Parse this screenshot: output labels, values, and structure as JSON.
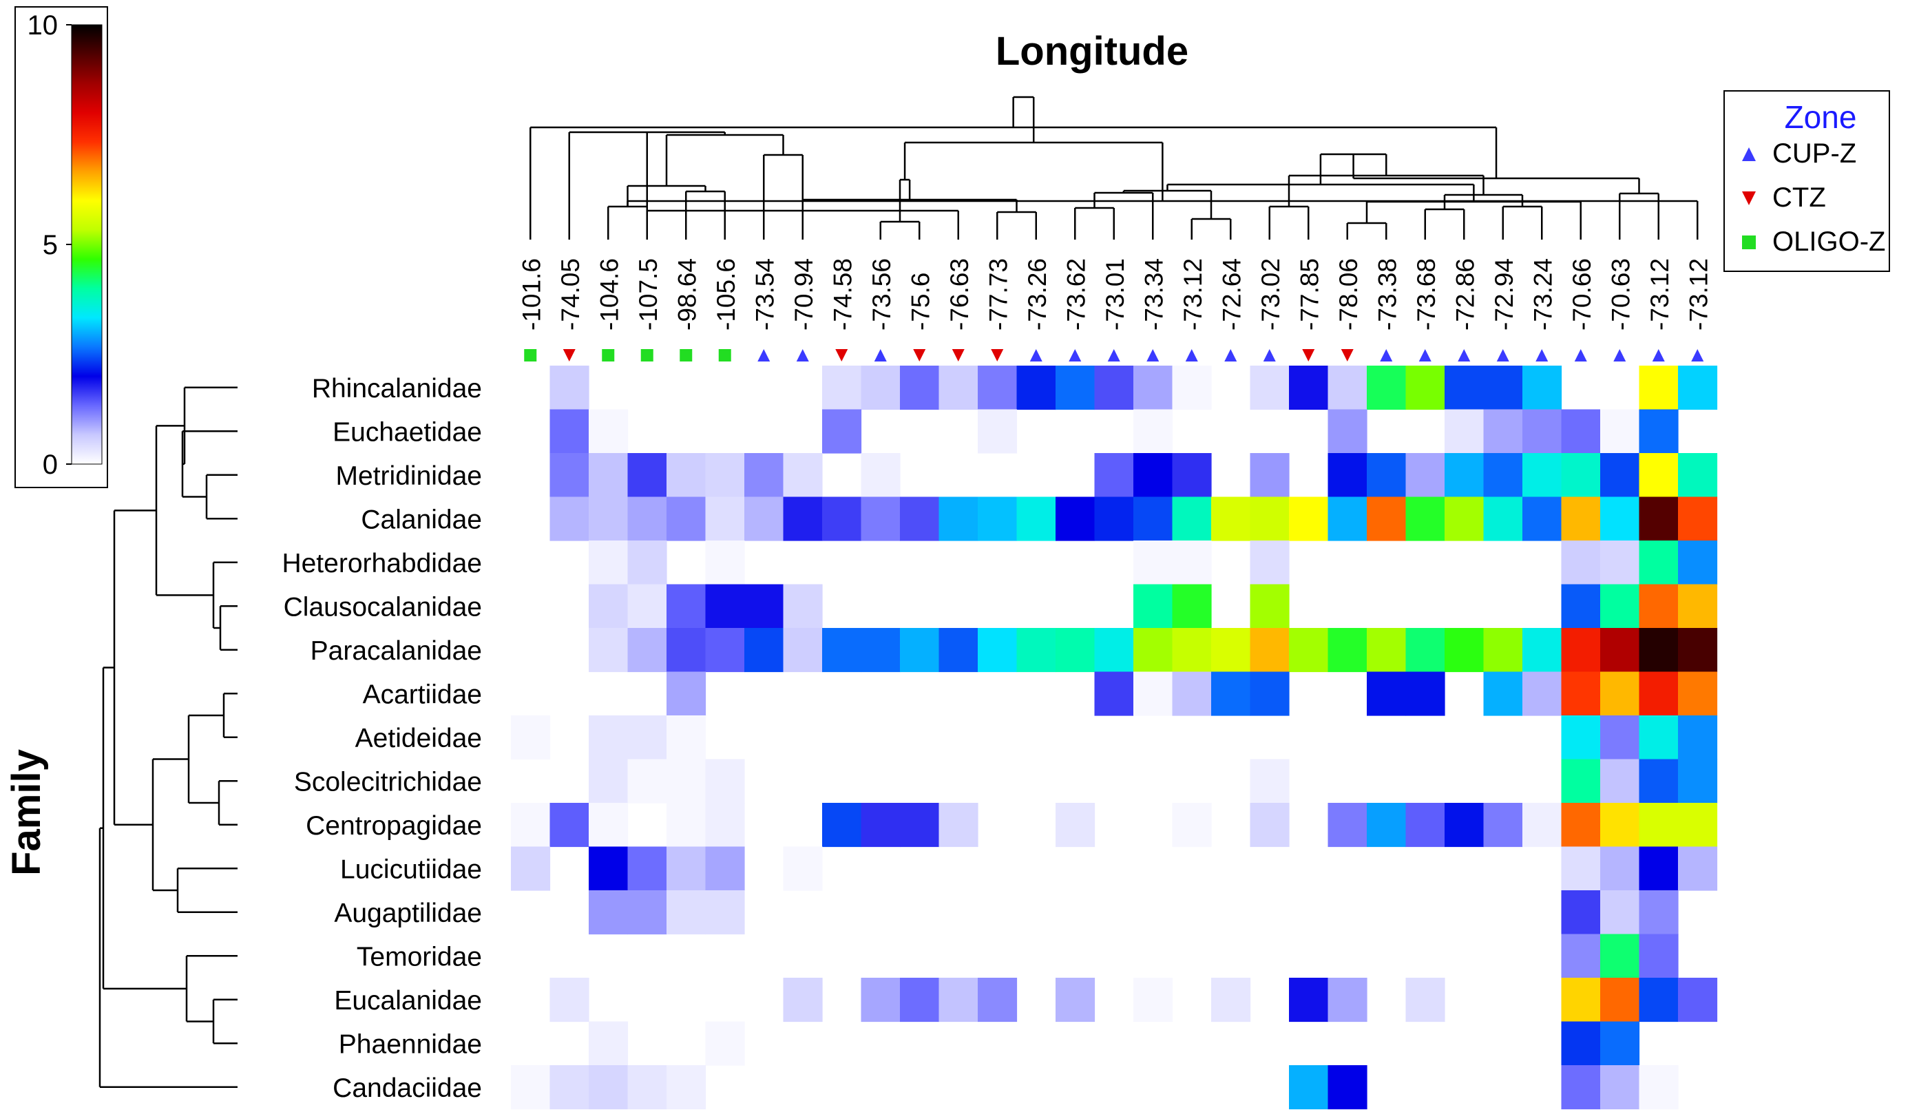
{
  "chart_data": {
    "type": "heatmap",
    "title": "Longitude",
    "xlabel": "",
    "ylabel": "Family",
    "colorbar": {
      "min": 0,
      "max": 10,
      "ticks": [
        "0",
        "5",
        "10"
      ],
      "stops": [
        "#ffffff",
        "#c8c8ff",
        "#6868ff",
        "#0000e8",
        "#0a78ff",
        "#00e8ff",
        "#00ffa0",
        "#30ff00",
        "#c0ff00",
        "#ffff00",
        "#ffa000",
        "#ff3000",
        "#e00000",
        "#a00000",
        "#500000",
        "#000000"
      ]
    },
    "columns": [
      "-101.6",
      "-74.05",
      "-104.6",
      "-107.5",
      "-98.64",
      "-105.6",
      "-73.54",
      "-70.94",
      "-74.58",
      "-73.56",
      "-75.6",
      "-76.63",
      "-77.73",
      "-73.26",
      "-73.62",
      "-73.01",
      "-73.34",
      "-73.12",
      "-72.64",
      "-73.02",
      "-77.85",
      "-78.06",
      "-73.38",
      "-73.68",
      "-72.86",
      "-72.94",
      "-73.24",
      "-70.66",
      "-70.63",
      "-73.12",
      "-73.12"
    ],
    "column_zones": [
      "OLIGO-Z",
      "CTZ",
      "OLIGO-Z",
      "OLIGO-Z",
      "OLIGO-Z",
      "OLIGO-Z",
      "CUP-Z",
      "CUP-Z",
      "CTZ",
      "CUP-Z",
      "CTZ",
      "CTZ",
      "CTZ",
      "CUP-Z",
      "CUP-Z",
      "CUP-Z",
      "CUP-Z",
      "CUP-Z",
      "CUP-Z",
      "CUP-Z",
      "CTZ",
      "CTZ",
      "CUP-Z",
      "CUP-Z",
      "CUP-Z",
      "CUP-Z",
      "CUP-Z",
      "CUP-Z",
      "CUP-Z",
      "CUP-Z",
      "CUP-Z"
    ],
    "rows": [
      "Rhincalanidae",
      "Euchaetidae",
      "Metridinidae",
      "Calanidae",
      "Heterorhabdidae",
      "Clausocalanidae",
      "Paracalanidae",
      "Acartiidae",
      "Aetideidae",
      "Scolecitrichidae",
      "Centropagidae",
      "Lucicutiidae",
      "Augaptilidae",
      "Temoridae",
      "Eucalanidae",
      "Phaennidae",
      "Candaciidae"
    ],
    "values": [
      [
        0,
        0.6,
        0,
        0,
        0,
        0,
        0,
        0,
        0.4,
        0.6,
        1.3,
        0.6,
        1.2,
        2.2,
        2.6,
        1.5,
        0.9,
        0.1,
        0,
        0.4,
        1.9,
        0.6,
        4.3,
        5.0,
        2.4,
        2.4,
        3.1,
        0,
        0,
        6.0,
        3.2
      ],
      [
        0,
        1.3,
        0.1,
        0,
        0,
        0,
        0,
        0,
        1.2,
        0,
        0,
        0,
        0.2,
        0,
        0,
        0,
        0.1,
        0,
        0,
        0,
        0,
        1.0,
        0,
        0,
        0.3,
        0.9,
        1.1,
        1.3,
        0.1,
        2.6,
        0
      ],
      [
        0,
        1.2,
        0.7,
        1.6,
        0.6,
        0.5,
        1.1,
        0.4,
        0,
        0.2,
        0,
        0,
        0,
        0,
        0,
        1.4,
        2.0,
        1.7,
        0,
        1.0,
        0,
        2.1,
        2.5,
        0.9,
        3.0,
        2.6,
        3.5,
        3.7,
        2.4,
        6.0,
        3.8
      ],
      [
        0,
        0.8,
        0.7,
        0.9,
        1.1,
        0.4,
        0.8,
        1.8,
        1.6,
        1.2,
        1.5,
        3.0,
        3.1,
        3.5,
        2.0,
        2.2,
        2.4,
        3.8,
        5.6,
        5.5,
        6.0,
        3.0,
        7.0,
        4.5,
        5.2,
        3.6,
        2.6,
        6.5,
        3.3,
        9.3,
        7.2
      ],
      [
        0,
        0,
        0.2,
        0.5,
        0,
        0.1,
        0,
        0,
        0,
        0,
        0,
        0,
        0,
        0,
        0,
        0,
        0.1,
        0.1,
        0,
        0.4,
        0,
        0,
        0,
        0,
        0,
        0,
        0,
        0.6,
        0.5,
        4.0,
        2.8
      ],
      [
        0,
        0,
        0.5,
        0.3,
        1.4,
        1.9,
        1.9,
        0.5,
        0,
        0,
        0,
        0,
        0,
        0,
        0,
        0,
        4.0,
        4.5,
        0,
        5.2,
        0,
        0,
        0,
        0,
        0,
        0,
        0,
        2.5,
        4.0,
        7.0,
        6.5
      ],
      [
        0,
        0,
        0.4,
        0.8,
        1.5,
        1.4,
        2.4,
        0.6,
        2.6,
        2.6,
        3.0,
        2.5,
        3.3,
        3.8,
        3.9,
        3.5,
        5.2,
        5.4,
        5.6,
        6.5,
        5.2,
        4.5,
        5.2,
        4.2,
        4.6,
        5.1,
        3.5,
        7.6,
        8.5,
        9.7,
        9.4
      ],
      [
        0,
        0,
        0,
        0,
        0.9,
        0,
        0,
        0,
        0,
        0,
        0,
        0,
        0,
        0,
        0,
        1.6,
        0.1,
        0.7,
        2.6,
        2.5,
        0,
        0,
        2.1,
        2.1,
        0,
        3.0,
        0.8,
        7.3,
        6.5,
        7.6,
        6.9
      ],
      [
        0.1,
        0,
        0.3,
        0.3,
        0.1,
        0,
        0,
        0,
        0,
        0,
        0,
        0,
        0,
        0,
        0,
        0,
        0,
        0,
        0,
        0,
        0,
        0,
        0,
        0,
        0,
        0,
        0,
        3.4,
        1.2,
        3.5,
        2.8
      ],
      [
        0,
        0,
        0.3,
        0.1,
        0.1,
        0.2,
        0,
        0,
        0,
        0,
        0,
        0,
        0,
        0,
        0,
        0,
        0,
        0,
        0,
        0.2,
        0,
        0,
        0,
        0,
        0,
        0,
        0,
        4.0,
        0.7,
        2.5,
        2.8
      ],
      [
        0.1,
        1.4,
        0.1,
        0,
        0.1,
        0.2,
        0,
        0,
        2.4,
        1.7,
        1.7,
        0.5,
        0,
        0,
        0.3,
        0,
        0,
        0.1,
        0,
        0.5,
        0,
        1.2,
        2.9,
        1.4,
        2.1,
        1.2,
        0.2,
        7.0,
        6.2,
        5.6,
        5.6
      ],
      [
        0.5,
        0,
        2.0,
        1.3,
        0.7,
        0.9,
        0,
        0.1,
        0,
        0,
        0,
        0,
        0,
        0,
        0,
        0,
        0,
        0,
        0,
        0,
        0,
        0,
        0,
        0,
        0,
        0,
        0,
        0.4,
        0.8,
        2.0,
        0.8
      ],
      [
        0,
        0,
        1.0,
        1.0,
        0.4,
        0.4,
        0,
        0,
        0,
        0,
        0,
        0,
        0,
        0,
        0,
        0,
        0,
        0,
        0,
        0,
        0,
        0,
        0,
        0,
        0,
        0,
        0,
        1.6,
        0.6,
        1.1,
        0
      ],
      [
        0,
        0,
        0,
        0,
        0,
        0,
        0,
        0,
        0,
        0,
        0,
        0,
        0,
        0,
        0,
        0,
        0,
        0,
        0,
        0,
        0,
        0,
        0,
        0,
        0,
        0,
        0,
        1.1,
        4.2,
        1.3,
        0
      ],
      [
        0,
        0.3,
        0,
        0,
        0,
        0,
        0,
        0.5,
        0,
        0.9,
        1.3,
        0.7,
        1.1,
        0,
        0.8,
        0,
        0.1,
        0,
        0.3,
        0,
        1.9,
        0.9,
        0,
        0.4,
        0,
        0,
        0,
        6.3,
        7.0,
        2.4,
        1.4
      ],
      [
        0,
        0,
        0.2,
        0,
        0,
        0.1,
        0,
        0,
        0,
        0,
        0,
        0,
        0,
        0,
        0,
        0,
        0,
        0,
        0,
        0,
        0,
        0,
        0,
        0,
        0,
        0,
        0,
        2.3,
        2.6,
        0,
        0
      ],
      [
        0.1,
        0.4,
        0.5,
        0.3,
        0.2,
        0,
        0,
        0,
        0,
        0,
        0,
        0,
        0,
        0,
        0,
        0,
        0,
        0,
        0,
        0,
        3.0,
        2.0,
        0,
        0,
        0,
        0,
        0,
        1.3,
        0.8,
        0.1,
        0
      ]
    ],
    "legend": {
      "title": "Zone",
      "position": "top-right",
      "entries": [
        {
          "name": "CUP-Z",
          "marker": "triangle-up",
          "color": "#3a3aff"
        },
        {
          "name": "CTZ",
          "marker": "triangle-down",
          "color": "#e00000"
        },
        {
          "name": "OLIGO-Z",
          "marker": "square",
          "color": "#22dd22"
        }
      ]
    }
  }
}
